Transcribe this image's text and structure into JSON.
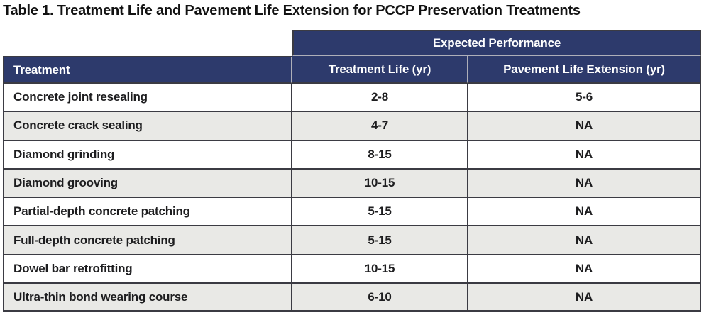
{
  "title": "Table 1. Treatment Life and Pavement Life Extension for PCCP Preservation Treatments",
  "table": {
    "spanning_header": "Expected Performance",
    "columns": {
      "treatment": "Treatment",
      "treatment_life": "Treatment Life (yr)",
      "pavement_life_extension": "Pavement Life Extension (yr)"
    },
    "rows": [
      {
        "treatment": "Concrete joint resealing",
        "treatment_life": "2-8",
        "pavement_life_extension": "5-6"
      },
      {
        "treatment": "Concrete crack sealing",
        "treatment_life": "4-7",
        "pavement_life_extension": "NA"
      },
      {
        "treatment": "Diamond grinding",
        "treatment_life": "8-15",
        "pavement_life_extension": "NA"
      },
      {
        "treatment": "Diamond grooving",
        "treatment_life": "10-15",
        "pavement_life_extension": "NA"
      },
      {
        "treatment": "Partial-depth concrete patching",
        "treatment_life": "5-15",
        "pavement_life_extension": "NA"
      },
      {
        "treatment": "Full-depth concrete patching",
        "treatment_life": "5-15",
        "pavement_life_extension": "NA"
      },
      {
        "treatment": "Dowel bar retrofitting",
        "treatment_life": "10-15",
        "pavement_life_extension": "NA"
      },
      {
        "treatment": "Ultra-thin bond wearing course",
        "treatment_life": "6-10",
        "pavement_life_extension": "NA"
      }
    ],
    "colors": {
      "header_bg": "#2d3a6c",
      "header_text": "#ffffff",
      "alt_row_bg": "#e9e9e6",
      "border_dark": "#3b3b43",
      "border_light": "#aeafb9",
      "body_text": "#1d1d1f"
    }
  }
}
